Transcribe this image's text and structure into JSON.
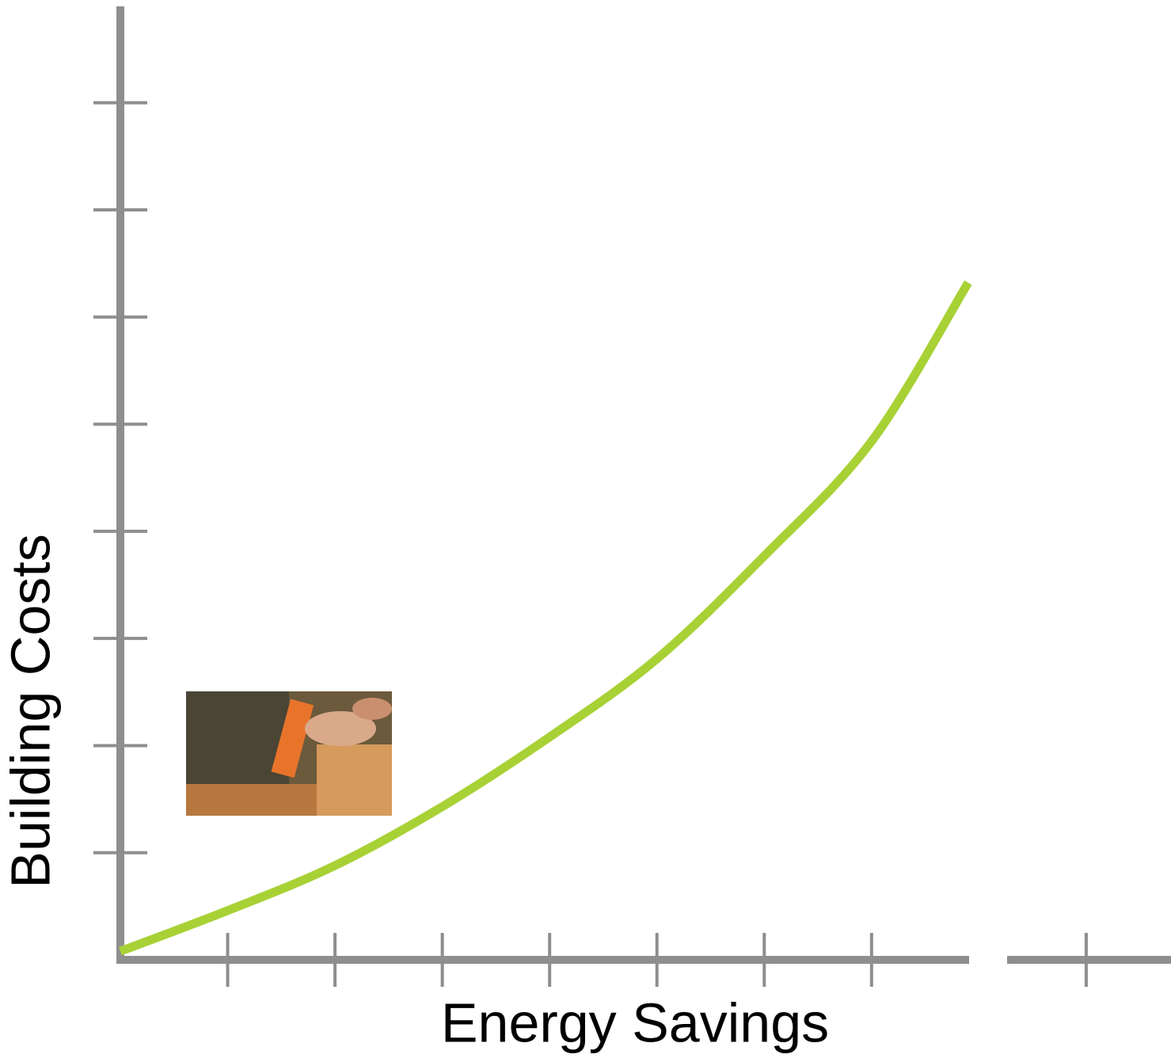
{
  "chart_data": {
    "type": "line",
    "x_label": "Energy Savings",
    "y_label": "Building Costs",
    "x": [
      0,
      1,
      2,
      3,
      4,
      5,
      6,
      7,
      7.9
    ],
    "values": [
      0.08,
      0.46,
      0.88,
      1.43,
      2.08,
      2.81,
      3.77,
      4.84,
      6.32
    ],
    "color": "#a8d135",
    "xlim": [
      0,
      9.79
    ],
    "xticks": [
      1,
      2,
      3,
      4,
      5,
      6,
      7,
      9
    ],
    "ylim": [
      0,
      8.9
    ],
    "yticks": [
      1,
      2,
      3,
      4,
      5,
      6,
      7,
      8
    ]
  }
}
